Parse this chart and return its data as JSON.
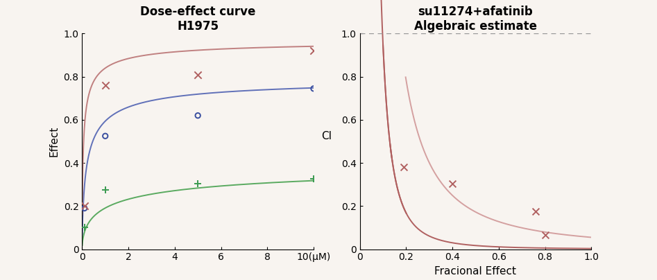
{
  "left_title": "Dose-effect curve\nH1975",
  "right_title": "su11274+afatinib\nAlgebraic estimate",
  "left_ylabel": "Effect",
  "right_xlabel": "Fracional Effect",
  "right_ylabel": "CI",
  "su11274_data_x": [
    0.1,
    1.0,
    5.0,
    10.0
  ],
  "su11274_data_y": [
    0.19,
    0.525,
    0.62,
    0.745
  ],
  "su11274_color": "#3a4fa0",
  "su11274_curve_color": "#6070b8",
  "afatinib_data_x": [
    0.1,
    1.0,
    5.0,
    10.0
  ],
  "afatinib_data_y": [
    0.1,
    0.275,
    0.305,
    0.325
  ],
  "afatinib_color": "#3a9a50",
  "afatinib_curve_color": "#5aaa60",
  "combo_data_x": [
    0.1,
    1.0,
    5.0,
    10.0
  ],
  "combo_data_y": [
    0.2,
    0.76,
    0.81,
    0.92
  ],
  "combo_color": "#b06060",
  "combo_curve_color": "#c08080",
  "ci_pts_fa": [
    0.19,
    0.4,
    0.76,
    0.8
  ],
  "ci_pts_ci": [
    0.38,
    0.305,
    0.175,
    0.065
  ],
  "ci_upper_color": "#d4a0a0",
  "ci_lower_color": "#b06060",
  "dashed_color": "#999999",
  "background_color": "#f8f4f0",
  "title_fontsize": 12,
  "axis_label_fontsize": 11,
  "tick_fontsize": 10
}
